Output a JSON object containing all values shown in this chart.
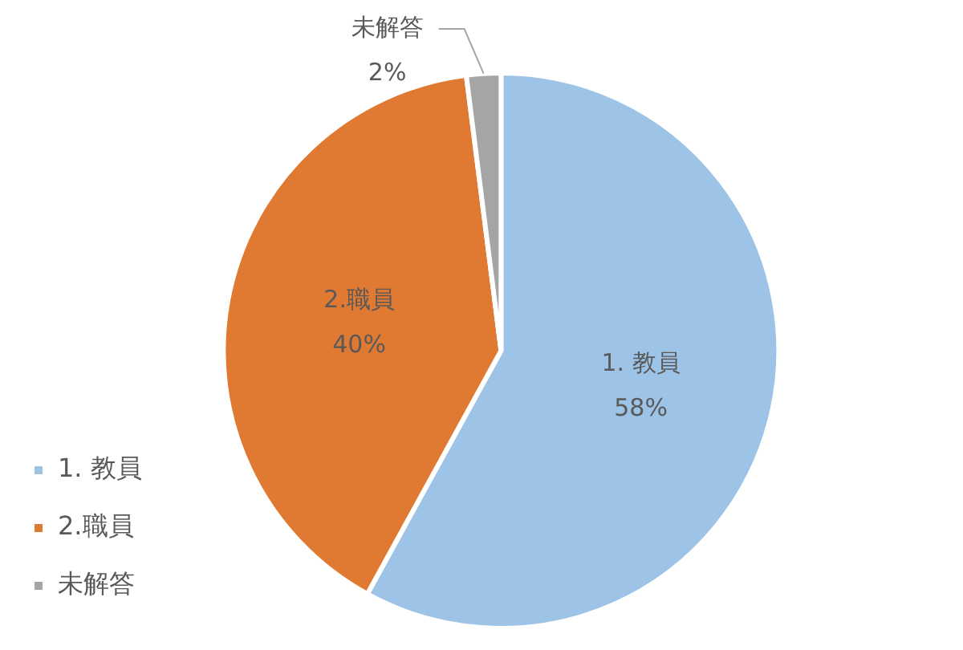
{
  "chart_data": {
    "type": "pie",
    "categories": [
      "1. 教員",
      "2.職員",
      "未解答"
    ],
    "values": [
      58,
      40,
      2
    ],
    "value_labels": [
      "58%",
      "40%",
      "2%"
    ],
    "colors": [
      "#9dc3e6",
      "#e07a32",
      "#a5a5a5"
    ],
    "legend": "bottom left"
  }
}
